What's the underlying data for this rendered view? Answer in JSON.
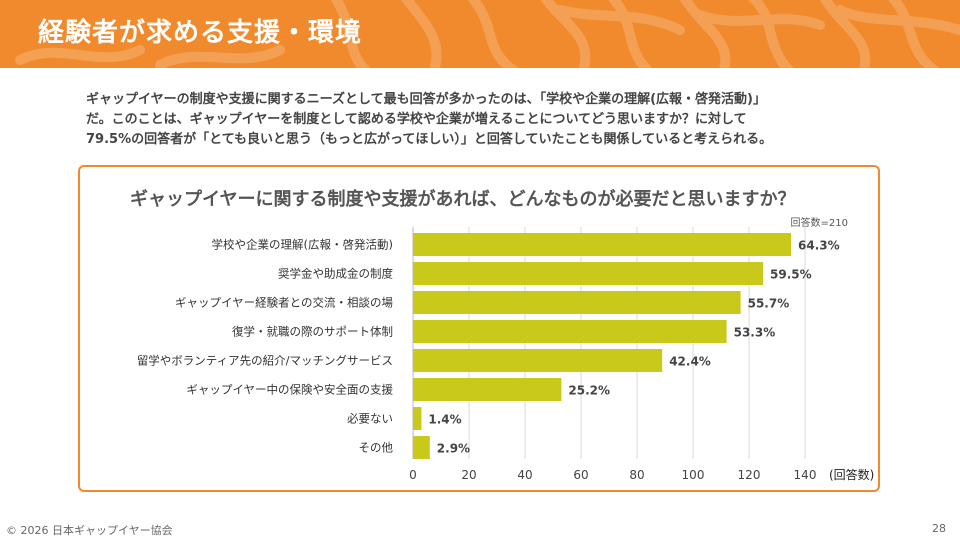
{
  "header": {
    "title": "経験者が求める支援・環境"
  },
  "intro": {
    "line1": "ギャップイヤーの制度や支援に関するニーズとして最も回答が多かったのは、「学校や企業の理解(広報・啓発活動)」",
    "line2": "だ。このことは、ギャップイヤーを制度として認める学校や企業が増えることについてどう思いますか？に対して",
    "line3": "79.5%の回答者が「とても良いと思う（もっと広がってほしい）」と回答していたことも関係していると考えられる。"
  },
  "chart_box": {
    "title": "ギャップイヤーに関する制度や支援があれば、どんなものが必要だと思いますか？",
    "respondents": "回答数=210"
  },
  "chart_data": {
    "type": "bar",
    "orientation": "horizontal",
    "title": "ギャップイヤーに関する制度や支援があれば、どんなものが必要だと思いますか？",
    "categories": [
      "学校や企業の理解(広報・啓発活動)",
      "奨学金や助成金の制度",
      "ギャップイヤー経験者との交流・相談の場",
      "復学・就職の際のサポート体制",
      "留学やボランティア先の紹介/マッチングサービス",
      "ギャップイヤー中の保険や安全面の支援",
      "必要ない",
      "その他"
    ],
    "values": [
      135,
      125,
      117,
      112,
      89,
      53,
      3,
      6
    ],
    "data_labels": [
      "64.3%",
      "59.5%",
      "55.7%",
      "53.3%",
      "42.4%",
      "25.2%",
      "1.4%",
      "2.9%"
    ],
    "xlabel": "(回答数)",
    "xlim": [
      0,
      140
    ],
    "xticks": [
      0,
      20,
      40,
      60,
      80,
      100,
      120,
      140
    ],
    "grid": true,
    "bar_color": "#c9c91c"
  },
  "footer": {
    "copyright": "© 2026 日本ギャップイヤー協会",
    "page": "28"
  },
  "colors": {
    "accent": "#f08a2c",
    "bar": "#c9c91c"
  }
}
